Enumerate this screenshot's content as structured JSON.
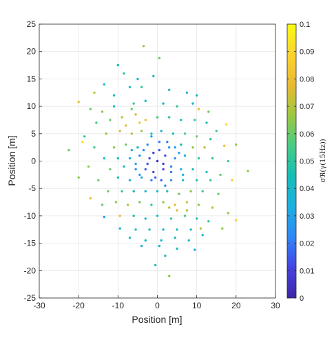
{
  "chart_data": {
    "type": "scatter",
    "title": "",
    "xlabel": "Position [m]",
    "ylabel": "Position [m]",
    "xlim": [
      -30,
      30
    ],
    "ylim": [
      -25,
      25
    ],
    "xticks": [
      "-30",
      "-20",
      "-10",
      "0",
      "10",
      "20",
      "30"
    ],
    "yticks": [
      "25",
      "20",
      "15",
      "10",
      "5",
      "0",
      "-5",
      "-10",
      "-15",
      "-20",
      "-25"
    ],
    "grid": true,
    "colorbar": {
      "label": "σℜ(γ(15Hz))",
      "range": [
        0,
        0.1
      ],
      "ticks": [
        "0.1",
        "0.09",
        "0.08",
        "0.07",
        "0.06",
        "0.05",
        "0.04",
        "0.03",
        "0.02",
        "0.01",
        "0"
      ],
      "colormap": [
        "#3e26a8",
        "#4543e4",
        "#2e87f7",
        "#1dafe2",
        "#13beb7",
        "#48cb86",
        "#9dc83f",
        "#e8ba32",
        "#fbd32d",
        "#f9fb15"
      ]
    },
    "points": [
      {
        "x": -10,
        "y": 17.5,
        "c": 0.045
      },
      {
        "x": -8.5,
        "y": 16,
        "c": 0.05
      },
      {
        "x": -3.5,
        "y": 21,
        "c": 0.065
      },
      {
        "x": 0.5,
        "y": 18.8,
        "c": 0.06
      },
      {
        "x": -5,
        "y": 15,
        "c": 0.04
      },
      {
        "x": -1,
        "y": 15.5,
        "c": 0.04
      },
      {
        "x": -16,
        "y": 12.5,
        "c": 0.07
      },
      {
        "x": -13.5,
        "y": 14,
        "c": 0.04
      },
      {
        "x": -20,
        "y": 10.8,
        "c": 0.08
      },
      {
        "x": -7,
        "y": 13.5,
        "c": 0.045
      },
      {
        "x": -4,
        "y": 13.5,
        "c": 0.05
      },
      {
        "x": 3,
        "y": 13,
        "c": 0.04
      },
      {
        "x": 7.5,
        "y": 12.5,
        "c": 0.035
      },
      {
        "x": 10,
        "y": 12,
        "c": 0.04
      },
      {
        "x": -17,
        "y": 9.5,
        "c": 0.06
      },
      {
        "x": -14,
        "y": 9,
        "c": 0.065
      },
      {
        "x": -11,
        "y": 10,
        "c": 0.045
      },
      {
        "x": -6,
        "y": 10.5,
        "c": 0.055
      },
      {
        "x": -3,
        "y": 11,
        "c": 0.045
      },
      {
        "x": 1.5,
        "y": 10.5,
        "c": 0.04
      },
      {
        "x": 5,
        "y": 10,
        "c": 0.05
      },
      {
        "x": 9,
        "y": 10.5,
        "c": 0.04
      },
      {
        "x": 10.5,
        "y": 9.5,
        "c": 0.08
      },
      {
        "x": 13,
        "y": 9,
        "c": 0.06
      },
      {
        "x": -15.5,
        "y": 7,
        "c": 0.055
      },
      {
        "x": -12,
        "y": 7.5,
        "c": 0.06
      },
      {
        "x": -9,
        "y": 8,
        "c": 0.07
      },
      {
        "x": -5.5,
        "y": 8.5,
        "c": 0.075
      },
      {
        "x": -3,
        "y": 7.5,
        "c": 0.08
      },
      {
        "x": 0,
        "y": 8,
        "c": 0.055
      },
      {
        "x": 3,
        "y": 8,
        "c": 0.05
      },
      {
        "x": 6,
        "y": 7.5,
        "c": 0.04
      },
      {
        "x": 9.5,
        "y": 7.5,
        "c": 0.05
      },
      {
        "x": 12.5,
        "y": 7,
        "c": 0.045
      },
      {
        "x": 17.5,
        "y": 6.7,
        "c": 0.09
      },
      {
        "x": 15,
        "y": 5.5,
        "c": 0.055
      },
      {
        "x": -18.5,
        "y": 4.5,
        "c": 0.05
      },
      {
        "x": -13,
        "y": 5,
        "c": 0.065
      },
      {
        "x": -9.5,
        "y": 5.5,
        "c": 0.075
      },
      {
        "x": -6.5,
        "y": 5,
        "c": 0.07
      },
      {
        "x": -4,
        "y": 5.5,
        "c": 0.065
      },
      {
        "x": -1.5,
        "y": 5,
        "c": 0.045
      },
      {
        "x": 1,
        "y": 5.5,
        "c": 0.035
      },
      {
        "x": 4,
        "y": 5,
        "c": 0.045
      },
      {
        "x": 7,
        "y": 5,
        "c": 0.055
      },
      {
        "x": 10,
        "y": 4.5,
        "c": 0.06
      },
      {
        "x": 13.5,
        "y": 4,
        "c": 0.05
      },
      {
        "x": -19,
        "y": 3.5,
        "c": 0.09
      },
      {
        "x": -16,
        "y": 2.5,
        "c": 0.055
      },
      {
        "x": -11,
        "y": 2.5,
        "c": 0.065
      },
      {
        "x": -8,
        "y": 3,
        "c": 0.06
      },
      {
        "x": -5,
        "y": 2.5,
        "c": 0.04
      },
      {
        "x": -2.5,
        "y": 3,
        "c": 0.025
      },
      {
        "x": 0.5,
        "y": 3.5,
        "c": 0.02
      },
      {
        "x": 3,
        "y": 2.5,
        "c": 0.025
      },
      {
        "x": 6,
        "y": 3,
        "c": 0.045
      },
      {
        "x": 9,
        "y": 2.5,
        "c": 0.065
      },
      {
        "x": 12,
        "y": 2.5,
        "c": 0.07
      },
      {
        "x": 17,
        "y": 2.8,
        "c": 0.08
      },
      {
        "x": 20,
        "y": 3,
        "c": 0.065
      },
      {
        "x": -22.5,
        "y": 2,
        "c": 0.06
      },
      {
        "x": -13.5,
        "y": 0.5,
        "c": 0.045
      },
      {
        "x": -10,
        "y": 0.5,
        "c": 0.04
      },
      {
        "x": -7,
        "y": 0.5,
        "c": 0.035
      },
      {
        "x": -4.5,
        "y": 1,
        "c": 0.025
      },
      {
        "x": -2,
        "y": 0.5,
        "c": 0.012
      },
      {
        "x": 0,
        "y": 0,
        "c": 0.005
      },
      {
        "x": 2,
        "y": 1,
        "c": 0.012
      },
      {
        "x": 4.5,
        "y": 0.5,
        "c": 0.025
      },
      {
        "x": 7,
        "y": 1,
        "c": 0.035
      },
      {
        "x": 10.5,
        "y": 0.5,
        "c": 0.05
      },
      {
        "x": 14,
        "y": 0.5,
        "c": 0.05
      },
      {
        "x": 18,
        "y": 0,
        "c": 0.055
      },
      {
        "x": 23,
        "y": -1.8,
        "c": 0.065
      },
      {
        "x": -17.5,
        "y": -1,
        "c": 0.065
      },
      {
        "x": -12,
        "y": -1.5,
        "c": 0.06
      },
      {
        "x": -8.5,
        "y": -1,
        "c": 0.04
      },
      {
        "x": -5.5,
        "y": -1.5,
        "c": 0.025
      },
      {
        "x": -3,
        "y": -1.5,
        "c": 0.015
      },
      {
        "x": -1,
        "y": -2,
        "c": 0.01
      },
      {
        "x": 1.5,
        "y": -1.5,
        "c": 0.01
      },
      {
        "x": 3.5,
        "y": -2,
        "c": 0.02
      },
      {
        "x": 6,
        "y": -1.5,
        "c": 0.035
      },
      {
        "x": 9,
        "y": -1.5,
        "c": 0.04
      },
      {
        "x": 12.5,
        "y": -2,
        "c": 0.045
      },
      {
        "x": 16,
        "y": -2.5,
        "c": 0.06
      },
      {
        "x": -20,
        "y": -3,
        "c": 0.065
      },
      {
        "x": -15,
        "y": -3.5,
        "c": 0.06
      },
      {
        "x": -10,
        "y": -3,
        "c": 0.045
      },
      {
        "x": -7,
        "y": -3.5,
        "c": 0.035
      },
      {
        "x": -4,
        "y": -3,
        "c": 0.03
      },
      {
        "x": -1.5,
        "y": -3.5,
        "c": 0.02
      },
      {
        "x": 1,
        "y": -3.5,
        "c": 0.015
      },
      {
        "x": 3.5,
        "y": -3.5,
        "c": 0.025
      },
      {
        "x": 6.5,
        "y": -3.5,
        "c": 0.04
      },
      {
        "x": 10,
        "y": -3.5,
        "c": 0.045
      },
      {
        "x": 13.5,
        "y": -3.5,
        "c": 0.05
      },
      {
        "x": 19,
        "y": -3.5,
        "c": 0.085
      },
      {
        "x": -17,
        "y": -6.8,
        "c": 0.08
      },
      {
        "x": -12.5,
        "y": -5.5,
        "c": 0.06
      },
      {
        "x": -9,
        "y": -5.5,
        "c": 0.05
      },
      {
        "x": -6,
        "y": -5.5,
        "c": 0.045
      },
      {
        "x": -3,
        "y": -5.5,
        "c": 0.04
      },
      {
        "x": 0,
        "y": -5.5,
        "c": 0.035
      },
      {
        "x": 2.5,
        "y": -5.5,
        "c": 0.045
      },
      {
        "x": 5.5,
        "y": -6,
        "c": 0.06
      },
      {
        "x": 8.5,
        "y": -5.5,
        "c": 0.065
      },
      {
        "x": 11.5,
        "y": -5.5,
        "c": 0.055
      },
      {
        "x": 15.5,
        "y": -6,
        "c": 0.06
      },
      {
        "x": -14,
        "y": -8,
        "c": 0.06
      },
      {
        "x": -10.5,
        "y": -7.5,
        "c": 0.065
      },
      {
        "x": -7.5,
        "y": -8,
        "c": 0.07
      },
      {
        "x": -4.5,
        "y": -7.5,
        "c": 0.06
      },
      {
        "x": -1.5,
        "y": -8,
        "c": 0.05
      },
      {
        "x": 1.5,
        "y": -7.5,
        "c": 0.065
      },
      {
        "x": 4.5,
        "y": -8,
        "c": 0.08
      },
      {
        "x": 7.5,
        "y": -7.5,
        "c": 0.075
      },
      {
        "x": 10.5,
        "y": -8,
        "c": 0.065
      },
      {
        "x": 14,
        "y": -8.5,
        "c": 0.07
      },
      {
        "x": 18,
        "y": -9.5,
        "c": 0.065
      },
      {
        "x": -13.5,
        "y": -10.2,
        "c": 0.03
      },
      {
        "x": -9.5,
        "y": -10,
        "c": 0.08
      },
      {
        "x": -6,
        "y": -10,
        "c": 0.045
      },
      {
        "x": -3,
        "y": -10.5,
        "c": 0.04
      },
      {
        "x": 0,
        "y": -10,
        "c": 0.045
      },
      {
        "x": 3.5,
        "y": -10.5,
        "c": 0.05
      },
      {
        "x": 7,
        "y": -10,
        "c": 0.055
      },
      {
        "x": 10,
        "y": -10.5,
        "c": 0.045
      },
      {
        "x": 13,
        "y": -11,
        "c": 0.05
      },
      {
        "x": 20,
        "y": -10.8,
        "c": 0.085
      },
      {
        "x": -9.5,
        "y": -12.3,
        "c": 0.04
      },
      {
        "x": -5.5,
        "y": -12.5,
        "c": 0.045
      },
      {
        "x": -2,
        "y": -12.5,
        "c": 0.04
      },
      {
        "x": 1.5,
        "y": -12.5,
        "c": 0.035
      },
      {
        "x": 5,
        "y": -12.5,
        "c": 0.04
      },
      {
        "x": 8.5,
        "y": -12.5,
        "c": 0.04
      },
      {
        "x": 11,
        "y": -12.3,
        "c": 0.07
      },
      {
        "x": 16.5,
        "y": -12.3,
        "c": 0.065
      },
      {
        "x": -7,
        "y": -14,
        "c": 0.045
      },
      {
        "x": -3,
        "y": -14.5,
        "c": 0.04
      },
      {
        "x": 1,
        "y": -14.5,
        "c": 0.035
      },
      {
        "x": 4.5,
        "y": -14,
        "c": 0.04
      },
      {
        "x": 8,
        "y": -14.5,
        "c": 0.04
      },
      {
        "x": -4,
        "y": -15.5,
        "c": 0.035
      },
      {
        "x": 0.5,
        "y": -15.5,
        "c": 0.04
      },
      {
        "x": 5,
        "y": -16,
        "c": 0.045
      },
      {
        "x": 9.5,
        "y": -16.2,
        "c": 0.035
      },
      {
        "x": 2,
        "y": -17.3,
        "c": 0.04
      },
      {
        "x": -0.5,
        "y": -19,
        "c": 0.045
      },
      {
        "x": 3,
        "y": -21,
        "c": 0.065
      },
      {
        "x": -1,
        "y": 1.5,
        "c": 0.008
      },
      {
        "x": 1.5,
        "y": -0.5,
        "c": 0.008
      },
      {
        "x": -2.5,
        "y": -0.5,
        "c": 0.014
      },
      {
        "x": 0.5,
        "y": 2,
        "c": 0.015
      },
      {
        "x": -0.5,
        "y": -3,
        "c": 0.016
      },
      {
        "x": 2.5,
        "y": 3.5,
        "c": 0.02
      },
      {
        "x": -3.5,
        "y": 2,
        "c": 0.022
      },
      {
        "x": 3.5,
        "y": -1,
        "c": 0.02
      },
      {
        "x": -1.5,
        "y": 4.5,
        "c": 0.028
      },
      {
        "x": 2,
        "y": -4.5,
        "c": 0.024
      },
      {
        "x": -5.5,
        "y": -0.5,
        "c": 0.03
      },
      {
        "x": 5.5,
        "y": 1.5,
        "c": 0.03
      },
      {
        "x": -4.5,
        "y": -2.5,
        "c": 0.026
      },
      {
        "x": 4.5,
        "y": 2.5,
        "c": 0.03
      },
      {
        "x": -6.5,
        "y": 2,
        "c": 0.04
      },
      {
        "x": 6.5,
        "y": -2.5,
        "c": 0.038
      },
      {
        "x": -8,
        "y": 6.5,
        "c": 0.078
      },
      {
        "x": -4.5,
        "y": 7,
        "c": 0.082
      },
      {
        "x": -6.5,
        "y": 9.5,
        "c": 0.06
      },
      {
        "x": 5,
        "y": -9,
        "c": 0.078
      },
      {
        "x": 3,
        "y": -8.5,
        "c": 0.072
      },
      {
        "x": 7.5,
        "y": -9,
        "c": 0.07
      },
      {
        "x": -11,
        "y": 12,
        "c": 0.04
      },
      {
        "x": 11.5,
        "y": -13.5,
        "c": 0.04
      }
    ]
  }
}
